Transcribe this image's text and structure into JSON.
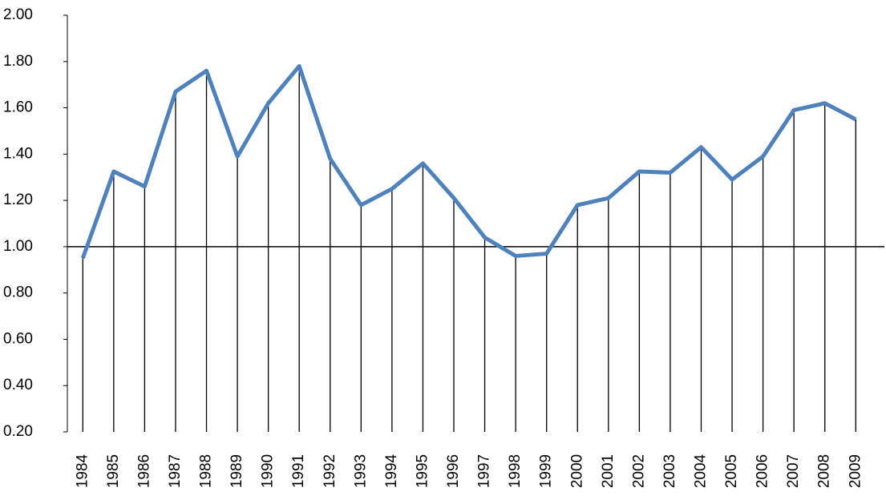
{
  "chart_data": {
    "type": "line",
    "categories": [
      "1984",
      "1985",
      "1986",
      "1987",
      "1988",
      "1989",
      "1990",
      "1991",
      "1992",
      "1993",
      "1994",
      "1995",
      "1996",
      "1997",
      "1998",
      "1999",
      "2000",
      "2001",
      "2002",
      "2003",
      "2004",
      "2005",
      "2006",
      "2007",
      "2008",
      "2009"
    ],
    "series": [
      {
        "color": "#4f81bd",
        "values": [
          0.95,
          1.325,
          1.26,
          1.67,
          1.76,
          1.39,
          1.62,
          1.78,
          1.38,
          1.18,
          1.25,
          1.36,
          1.21,
          1.04,
          0.96,
          0.97,
          1.18,
          1.21,
          1.325,
          1.32,
          1.43,
          1.29,
          1.39,
          1.59,
          1.62,
          1.55
        ]
      }
    ],
    "ylim": [
      0.2,
      2.0
    ],
    "yticks": [
      {
        "value": 0.2,
        "label": "0.20"
      },
      {
        "value": 0.4,
        "label": "0.40"
      },
      {
        "value": 0.6,
        "label": "0.60"
      },
      {
        "value": 0.8,
        "label": "0.80"
      },
      {
        "value": 1.0,
        "label": "1.00"
      },
      {
        "value": 1.2,
        "label": "1.20"
      },
      {
        "value": 1.4,
        "label": "1.40"
      },
      {
        "value": 1.6,
        "label": "1.60"
      },
      {
        "value": 1.8,
        "label": "1.80"
      },
      {
        "value": 2.0,
        "label": "2.00"
      }
    ],
    "x_axis_crosses_at": 1.0,
    "drop_lines": true,
    "grid": false
  }
}
